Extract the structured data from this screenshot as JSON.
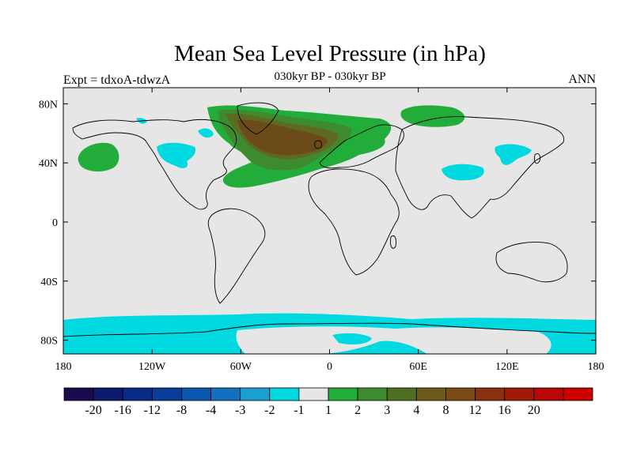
{
  "title": "Mean Sea Level Pressure (in hPa)",
  "experiment_label": "Expt = tdxoA-tdwzA",
  "subtitle": "030kyr BP - 030kyr BP",
  "season": "ANN",
  "colors": {
    "background": "#e6e6e6",
    "neg1": "#00d9e0",
    "pos1": "#22ad3a",
    "pos2": "#3e8a2e",
    "pos3": "#5e6a20",
    "pos4": "#6b4b1a",
    "coastline": "#000000"
  },
  "map": {
    "x_ticks": [
      {
        "lon": -180,
        "label": "180"
      },
      {
        "lon": -120,
        "label": "120W"
      },
      {
        "lon": -60,
        "label": "60W"
      },
      {
        "lon": 0,
        "label": "0"
      },
      {
        "lon": 60,
        "label": "60E"
      },
      {
        "lon": 120,
        "label": "120E"
      },
      {
        "lon": 180,
        "label": "180"
      }
    ],
    "y_ticks": [
      {
        "lat": 80,
        "label": "80N"
      },
      {
        "lat": 40,
        "label": "40N"
      },
      {
        "lat": 0,
        "label": "0"
      },
      {
        "lat": -40,
        "label": "40S"
      },
      {
        "lat": -80,
        "label": "80S"
      }
    ]
  },
  "colorbar": {
    "colors": [
      "#1a0a4e",
      "#0d1a6e",
      "#0a2a88",
      "#0a3d9a",
      "#0a55ae",
      "#1270c0",
      "#1a9fd0",
      "#00d9e0",
      "#e6e6e6",
      "#22ad3a",
      "#3e8a2e",
      "#4e6e22",
      "#6b5a1c",
      "#7a4a14",
      "#8a3010",
      "#a01a0a",
      "#b80808",
      "#cc0000"
    ],
    "labels": [
      "-20",
      "-16",
      "-12",
      "-8",
      "-4",
      "-3",
      "-2",
      "-1",
      "1",
      "2",
      "3",
      "4",
      "8",
      "12",
      "16",
      "20"
    ]
  }
}
